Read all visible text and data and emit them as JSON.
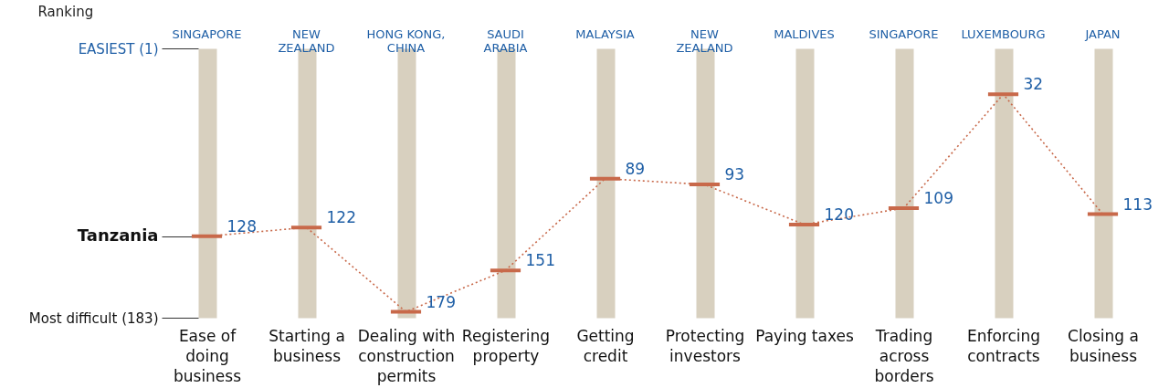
{
  "chart_data": {
    "type": "line",
    "ylabel": "Ranking",
    "categories": [
      "Ease of doing business",
      "Starting a business",
      "Dealing with construction permits",
      "Registering property",
      "Getting credit",
      "Protecting investors",
      "Paying taxes",
      "Trading across borders",
      "Enforcing contracts",
      "Closing a business"
    ],
    "series": [
      {
        "name": "Tanzania",
        "color": "#c8694a",
        "values": [
          128,
          122,
          179,
          151,
          89,
          93,
          120,
          109,
          32,
          113
        ]
      }
    ],
    "ylim": [
      183,
      1
    ],
    "yticks": [
      {
        "value": 1,
        "label": "EASIEST (1)"
      },
      {
        "value": 183,
        "label": "Most difficult (183)"
      }
    ],
    "grid": "x",
    "data_labels": true,
    "line_style": "dotted",
    "annotations": [
      "SINGAPORE",
      "NEW ZEALAND",
      "HONG KONG, CHINA",
      "SAUDI ARABIA",
      "MALAYSIA",
      "NEW ZEALAND",
      "MALDIVES",
      "SINGAPORE",
      "LUXEMBOURG",
      "JAPAN"
    ]
  }
}
